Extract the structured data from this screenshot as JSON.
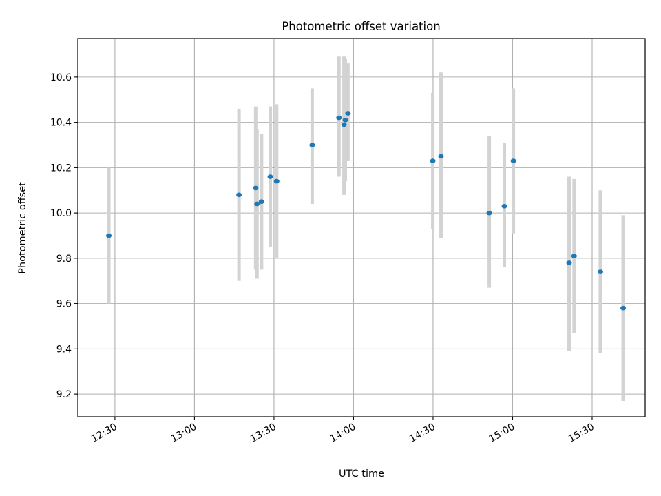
{
  "chart_data": {
    "type": "scatter",
    "title": "Photometric offset variation",
    "xlabel": "UTC time",
    "ylabel": "Photometric offset",
    "grid": true,
    "x_unit": "minutes since 00:00 UTC",
    "xlim": [
      736,
      950
    ],
    "ylim": [
      9.1,
      10.77
    ],
    "x_ticks": [
      {
        "value": 750,
        "label": "12:30"
      },
      {
        "value": 780,
        "label": "13:00"
      },
      {
        "value": 810,
        "label": "13:30"
      },
      {
        "value": 840,
        "label": "14:00"
      },
      {
        "value": 870,
        "label": "14:30"
      },
      {
        "value": 900,
        "label": "15:00"
      },
      {
        "value": 930,
        "label": "15:30"
      }
    ],
    "y_ticks": [
      {
        "value": 9.2,
        "label": "9.2"
      },
      {
        "value": 9.4,
        "label": "9.4"
      },
      {
        "value": 9.6,
        "label": "9.6"
      },
      {
        "value": 9.8,
        "label": "9.8"
      },
      {
        "value": 10.0,
        "label": "10.0"
      },
      {
        "value": 10.2,
        "label": "10.2"
      },
      {
        "value": 10.4,
        "label": "10.4"
      },
      {
        "value": 10.6,
        "label": "10.6"
      }
    ],
    "series": [
      {
        "name": "offset",
        "marker_color": "#1f77b4",
        "errorbar_color": "#d3d3d3",
        "points": [
          {
            "x": 747.7,
            "y": 9.9,
            "ylow": 9.6,
            "yhigh": 10.2
          },
          {
            "x": 796.8,
            "y": 10.08,
            "ylow": 9.7,
            "yhigh": 10.46
          },
          {
            "x": 803.1,
            "y": 10.11,
            "ylow": 9.75,
            "yhigh": 10.47
          },
          {
            "x": 803.6,
            "y": 10.04,
            "ylow": 9.71,
            "yhigh": 10.37
          },
          {
            "x": 805.3,
            "y": 10.05,
            "ylow": 9.75,
            "yhigh": 10.35
          },
          {
            "x": 808.6,
            "y": 10.16,
            "ylow": 9.85,
            "yhigh": 10.47
          },
          {
            "x": 811.0,
            "y": 10.14,
            "ylow": 9.8,
            "yhigh": 10.48
          },
          {
            "x": 824.4,
            "y": 10.3,
            "ylow": 10.04,
            "yhigh": 10.55
          },
          {
            "x": 834.5,
            "y": 10.42,
            "ylow": 10.16,
            "yhigh": 10.69
          },
          {
            "x": 836.4,
            "y": 10.39,
            "ylow": 10.08,
            "yhigh": 10.69
          },
          {
            "x": 836.9,
            "y": 10.41,
            "ylow": 10.14,
            "yhigh": 10.68
          },
          {
            "x": 837.9,
            "y": 10.44,
            "ylow": 10.23,
            "yhigh": 10.66
          },
          {
            "x": 869.9,
            "y": 10.23,
            "ylow": 9.93,
            "yhigh": 10.53
          },
          {
            "x": 873.0,
            "y": 10.25,
            "ylow": 9.89,
            "yhigh": 10.62
          },
          {
            "x": 891.2,
            "y": 10.0,
            "ylow": 9.67,
            "yhigh": 10.34
          },
          {
            "x": 896.9,
            "y": 10.03,
            "ylow": 9.76,
            "yhigh": 10.31
          },
          {
            "x": 900.3,
            "y": 10.23,
            "ylow": 9.91,
            "yhigh": 10.55
          },
          {
            "x": 921.3,
            "y": 9.78,
            "ylow": 9.39,
            "yhigh": 10.16
          },
          {
            "x": 923.2,
            "y": 9.81,
            "ylow": 9.47,
            "yhigh": 10.15
          },
          {
            "x": 933.1,
            "y": 9.74,
            "ylow": 9.38,
            "yhigh": 10.1
          },
          {
            "x": 941.7,
            "y": 9.58,
            "ylow": 9.17,
            "yhigh": 9.99
          }
        ]
      }
    ]
  }
}
